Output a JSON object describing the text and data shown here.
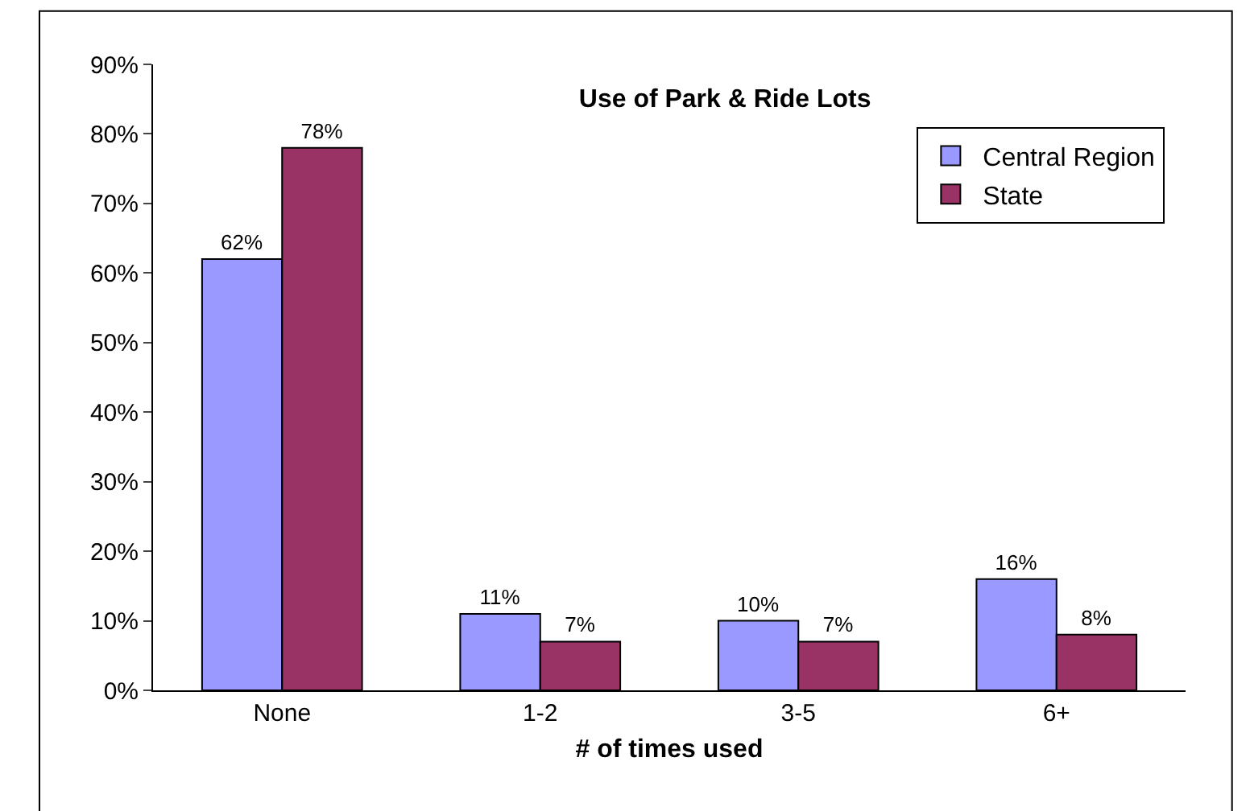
{
  "chart_data": {
    "type": "bar",
    "title": "Use of Park & Ride Lots",
    "xlabel": "# of times used",
    "categories": [
      "None",
      "1-2",
      "3-5",
      "6+"
    ],
    "series": [
      {
        "name": "Central Region",
        "color": "#9999ff",
        "values": [
          62,
          11,
          10,
          16
        ],
        "value_labels": [
          "62%",
          "11%",
          "10%",
          "16%"
        ]
      },
      {
        "name": "State",
        "color": "#993366",
        "values": [
          78,
          7,
          7,
          8
        ],
        "value_labels": [
          "78%",
          "7%",
          "7%",
          "8%"
        ]
      }
    ],
    "ylim": [
      0,
      90
    ],
    "yticks": [
      {
        "value": 0,
        "label": "0%"
      },
      {
        "value": 10,
        "label": "10%"
      },
      {
        "value": 20,
        "label": "20%"
      },
      {
        "value": 30,
        "label": "30%"
      },
      {
        "value": 40,
        "label": "40%"
      },
      {
        "value": 50,
        "label": "50%"
      },
      {
        "value": 60,
        "label": "60%"
      },
      {
        "value": 70,
        "label": "70%"
      },
      {
        "value": 80,
        "label": "80%"
      },
      {
        "value": 90,
        "label": "90%"
      }
    ],
    "grid": false,
    "legend": "top right"
  }
}
